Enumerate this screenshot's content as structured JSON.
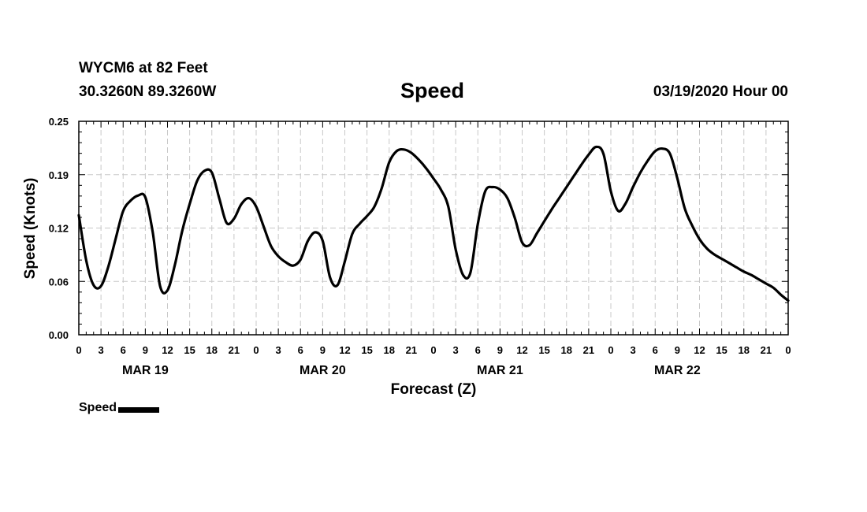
{
  "header": {
    "station": "WYCM6 at 82 Feet",
    "coords": "30.3260N 89.3260W",
    "title": "Speed",
    "runtime": "03/19/2020 Hour 00"
  },
  "chart_data": {
    "type": "line",
    "title": "Speed",
    "xlabel": "Forecast (Z)",
    "ylabel": "Speed (Knots)",
    "ylim": [
      0,
      0.25
    ],
    "yticks": [
      "0.00",
      "0.06",
      "0.12",
      "0.19",
      "0.25"
    ],
    "ytick_values": [
      0,
      0.0625,
      0.125,
      0.1875,
      0.25
    ],
    "xlim": [
      0,
      96
    ],
    "xticks": [
      "0",
      "3",
      "6",
      "9",
      "12",
      "15",
      "18",
      "21",
      "0",
      "3",
      "6",
      "9",
      "12",
      "15",
      "18",
      "21",
      "0",
      "3",
      "6",
      "9",
      "12",
      "15",
      "18",
      "21",
      "0",
      "3",
      "6",
      "9",
      "12",
      "15",
      "18",
      "21",
      "0"
    ],
    "date_labels": [
      {
        "label": "MAR 19",
        "hour": 9
      },
      {
        "label": "MAR 20",
        "hour": 33
      },
      {
        "label": "MAR 21",
        "hour": 57
      },
      {
        "label": "MAR 22",
        "hour": 81
      }
    ],
    "grid": true,
    "legend_position": "bottom-left",
    "series": [
      {
        "name": "Speed",
        "color": "#000000",
        "x": [
          0,
          1,
          2,
          3,
          4,
          5,
          6,
          7,
          8,
          9,
          10,
          11,
          12,
          13,
          14,
          15,
          16,
          17,
          18,
          19,
          20,
          21,
          22,
          23,
          24,
          25,
          26,
          27,
          28,
          29,
          30,
          31,
          32,
          33,
          34,
          35,
          36,
          37,
          38,
          39,
          40,
          41,
          42,
          43,
          44,
          45,
          46,
          47,
          48,
          49,
          50,
          51,
          52,
          53,
          54,
          55,
          56,
          57,
          58,
          59,
          60,
          61,
          62,
          63,
          64,
          65,
          66,
          67,
          68,
          69,
          70,
          71,
          72,
          73,
          74,
          75,
          76,
          77,
          78,
          79,
          80,
          81,
          82,
          83,
          84,
          85,
          86,
          87,
          88,
          89,
          90,
          91,
          92,
          93,
          94,
          95,
          96
        ],
        "y": [
          0.14,
          0.087,
          0.058,
          0.057,
          0.08,
          0.113,
          0.145,
          0.157,
          0.163,
          0.161,
          0.12,
          0.057,
          0.052,
          0.082,
          0.122,
          0.153,
          0.18,
          0.192,
          0.19,
          0.16,
          0.131,
          0.136,
          0.153,
          0.16,
          0.15,
          0.127,
          0.104,
          0.092,
          0.085,
          0.081,
          0.088,
          0.11,
          0.12,
          0.11,
          0.067,
          0.058,
          0.086,
          0.118,
          0.13,
          0.139,
          0.15,
          0.172,
          0.202,
          0.215,
          0.217,
          0.213,
          0.205,
          0.195,
          0.183,
          0.17,
          0.15,
          0.1,
          0.07,
          0.073,
          0.13,
          0.168,
          0.173,
          0.17,
          0.16,
          0.137,
          0.108,
          0.105,
          0.119,
          0.133,
          0.147,
          0.16,
          0.173,
          0.186,
          0.199,
          0.211,
          0.22,
          0.212,
          0.168,
          0.145,
          0.154,
          0.173,
          0.19,
          0.204,
          0.215,
          0.218,
          0.212,
          0.183,
          0.148,
          0.128,
          0.112,
          0.101,
          0.094,
          0.089,
          0.084,
          0.079,
          0.074,
          0.07,
          0.065,
          0.06,
          0.055,
          0.047,
          0.04
        ]
      }
    ]
  },
  "legend": {
    "label": "Speed"
  }
}
